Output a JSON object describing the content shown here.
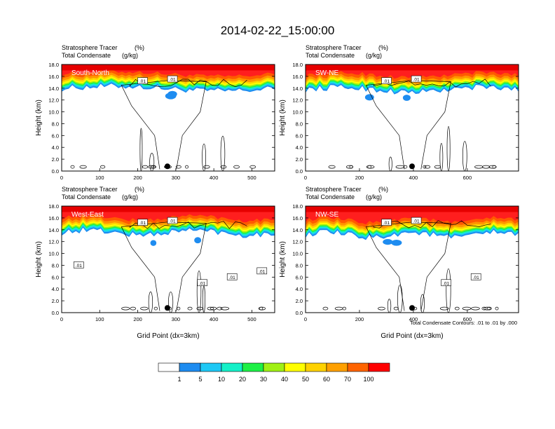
{
  "title": "2014-02-22_15:00:00",
  "palette": [
    "#ffffff",
    "#1e88f5",
    "#1ec8f5",
    "#14f0c8",
    "#1ef046",
    "#00dc00",
    "#a0f014",
    "#ffff00",
    "#ffd200",
    "#ffa000",
    "#ff6400",
    "#ff1e1e",
    "#e60000"
  ],
  "colorbar": {
    "ticks": [
      "1",
      "5",
      "10",
      "20",
      "30",
      "40",
      "50",
      "60",
      "70",
      "100"
    ],
    "colors": [
      "#ffffff",
      "#1e8cf0",
      "#1ec8f5",
      "#14f0c8",
      "#1ef046",
      "#a0f014",
      "#ffff00",
      "#ffd200",
      "#ffa000",
      "#ff6400",
      "#ff0000"
    ]
  },
  "contour_note": "Total Condensate Contours: .01 to .01 by .000",
  "chart_data": [
    {
      "type": "heatmap",
      "panel_label": "South-North",
      "title_left_1": "Stratosphere Tracer",
      "units_1": "(%)",
      "title_left_2": "Total Condensate",
      "units_2": "(g/kg)",
      "ylabel": "Height (km)",
      "xlabel": "",
      "xlim": [
        0,
        560
      ],
      "ylim": [
        0,
        18
      ],
      "xticks": [
        0,
        100,
        200,
        300,
        400,
        500
      ],
      "yticks": [
        "0.0",
        "2.0",
        "4.0",
        "6.0",
        "8.0",
        "10.0",
        "12.0",
        "14.0",
        "16.0",
        "18.0"
      ],
      "tracer_base_km": 14.0,
      "dot_x": 278,
      "contour_labels": [
        ".01",
        ".01"
      ]
    },
    {
      "type": "heatmap",
      "panel_label": "SW-NE",
      "title_left_1": "Stratosphere Tracer",
      "units_1": "(%)",
      "title_left_2": "Total Condensate",
      "units_2": "(g/kg)",
      "ylabel": "Height (km)",
      "xlabel": "",
      "xlim": [
        0,
        790
      ],
      "ylim": [
        0,
        18
      ],
      "xticks": [
        0,
        200,
        400,
        600
      ],
      "yticks": [
        "0.0",
        "2.0",
        "4.0",
        "6.0",
        "8.0",
        "10.0",
        "12.0",
        "14.0",
        "16.0",
        "18.0"
      ],
      "tracer_base_km": 13.8,
      "dot_x": 395,
      "contour_labels": [
        ".01",
        ".01"
      ]
    },
    {
      "type": "heatmap",
      "panel_label": "West-East",
      "title_left_1": "Stratosphere Tracer",
      "units_1": "(%)",
      "title_left_2": "Total Condensate",
      "units_2": "(g/kg)",
      "ylabel": "Height (km)",
      "xlabel": "Grid Point (dx=3km)",
      "xlim": [
        0,
        560
      ],
      "ylim": [
        0,
        18
      ],
      "xticks": [
        0,
        100,
        200,
        300,
        400,
        500
      ],
      "yticks": [
        "0.0",
        "2.0",
        "4.0",
        "6.0",
        "8.0",
        "10.0",
        "12.0",
        "14.0",
        "16.0",
        "18.0"
      ],
      "tracer_base_km": 13.6,
      "dot_x": 278,
      "contour_labels": [
        ".01",
        ".01",
        ".01",
        ".01",
        ".01",
        ".01"
      ]
    },
    {
      "type": "heatmap",
      "panel_label": "NW-SE",
      "title_left_1": "Stratosphere Tracer",
      "units_1": "(%)",
      "title_left_2": "Total Condensate",
      "units_2": "(g/kg)",
      "ylabel": "Height (km)",
      "xlabel": "Grid Point (dx=3km)",
      "xlim": [
        0,
        790
      ],
      "ylim": [
        0,
        18
      ],
      "xticks": [
        0,
        200,
        400,
        600
      ],
      "yticks": [
        "0.0",
        "2.0",
        "4.0",
        "6.0",
        "8.0",
        "10.0",
        "12.0",
        "14.0",
        "16.0",
        "18.0"
      ],
      "tracer_base_km": 13.2,
      "dot_x": 395,
      "contour_labels": [
        ".01",
        ".01",
        ".01",
        ".01"
      ]
    }
  ]
}
